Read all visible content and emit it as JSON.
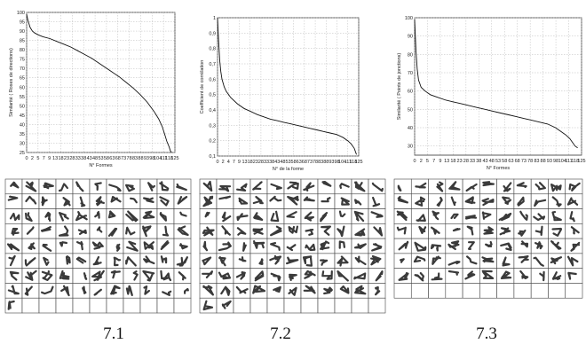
{
  "chart_data": [
    {
      "type": "line",
      "id": "7.1",
      "caption": "7.1",
      "xlabel": "N° Formes",
      "ylabel": "Similarité ( Roses de directions)",
      "ylim": [
        25,
        100
      ],
      "yticks": [
        "25",
        "30",
        "35",
        "40",
        "45",
        "50",
        "55",
        "60",
        "65",
        "70",
        "75",
        "80",
        "85",
        "90",
        "95",
        "100"
      ],
      "xticks": [
        "0",
        "2",
        "5",
        "7",
        "9",
        "13",
        "18",
        "23",
        "28",
        "33",
        "38",
        "43",
        "48",
        "53",
        "58",
        "63",
        "68",
        "73",
        "78",
        "83",
        "88",
        "93",
        "98",
        "104",
        "111",
        "118",
        "125"
      ],
      "xlim": [
        0,
        128
      ],
      "grid": true,
      "series": [
        {
          "x": [
            0,
            1,
            2,
            3,
            5,
            7,
            10,
            14,
            20,
            26,
            32,
            38,
            44,
            50,
            56,
            62,
            68,
            74,
            80,
            86,
            92,
            98,
            104,
            110,
            114,
            117,
            119,
            121,
            123,
            124,
            125
          ],
          "y": [
            99,
            96,
            94,
            92,
            90,
            89,
            88,
            87,
            86,
            84.5,
            83,
            81.5,
            79.5,
            77.5,
            75.5,
            73,
            70.5,
            68,
            65.5,
            62.5,
            59.5,
            56,
            52,
            47,
            43,
            39,
            35,
            31,
            28,
            26,
            25
          ]
        }
      ],
      "glyph_grid": {
        "rows": 9,
        "cols": 11,
        "filled": 89
      }
    },
    {
      "type": "line",
      "id": "7.2",
      "caption": "7.2",
      "xlabel": "N° de la forme",
      "ylabel": "Coefficient de corrélation",
      "ylim": [
        0.1,
        1.0
      ],
      "yticks": [
        "0,1",
        "0,2",
        "0,3",
        "0,4",
        "0,5",
        "0,6",
        "0,7",
        "0,8",
        "0,9",
        "1"
      ],
      "xticks": [
        "0",
        "2",
        "4",
        "7",
        "9",
        "13",
        "18",
        "23",
        "28",
        "33",
        "38",
        "43",
        "48",
        "53",
        "58",
        "63",
        "68",
        "73",
        "78",
        "83",
        "88",
        "93",
        "98",
        "104",
        "111",
        "118",
        "125"
      ],
      "xlim": [
        0,
        128
      ],
      "grid": true,
      "series": [
        {
          "x": [
            0,
            1,
            2,
            3,
            4,
            6,
            8,
            12,
            18,
            24,
            30,
            36,
            42,
            48,
            54,
            60,
            66,
            72,
            78,
            84,
            90,
            96,
            102,
            108,
            114,
            118,
            121,
            124,
            126
          ],
          "y": [
            1.0,
            0.85,
            0.72,
            0.65,
            0.6,
            0.55,
            0.52,
            0.48,
            0.44,
            0.41,
            0.39,
            0.37,
            0.355,
            0.34,
            0.33,
            0.32,
            0.31,
            0.3,
            0.29,
            0.28,
            0.27,
            0.26,
            0.25,
            0.24,
            0.22,
            0.2,
            0.18,
            0.15,
            0.11
          ]
        }
      ],
      "glyph_grid": {
        "rows": 9,
        "cols": 11,
        "filled": 90
      }
    },
    {
      "type": "line",
      "id": "7.3",
      "caption": "7.3",
      "xlabel": "N° Formes",
      "ylabel": "Similarité ( Points de jonctions)",
      "ylim": [
        25,
        100
      ],
      "yticks": [
        "30",
        "40",
        "50",
        "60",
        "70",
        "80",
        "90",
        "100"
      ],
      "xticks": [
        "0",
        "2",
        "5",
        "7",
        "9",
        "13",
        "18",
        "23",
        "28",
        "33",
        "38",
        "43",
        "48",
        "53",
        "58",
        "63",
        "68",
        "73",
        "78",
        "83",
        "88",
        "93",
        "98",
        "104",
        "111",
        "118",
        "125"
      ],
      "xlim": [
        0,
        128
      ],
      "grid": true,
      "series": [
        {
          "x": [
            0,
            1,
            2,
            3,
            5,
            8,
            12,
            18,
            24,
            30,
            36,
            42,
            48,
            54,
            60,
            66,
            72,
            78,
            84,
            90,
            96,
            102,
            108,
            112,
            116,
            119,
            121,
            123,
            125
          ],
          "y": [
            99,
            82,
            72,
            66,
            62,
            60,
            58,
            56.5,
            55,
            54,
            53,
            52,
            51,
            50,
            49,
            48,
            47,
            46,
            45,
            44,
            43,
            42,
            40,
            38,
            36,
            34,
            32,
            30,
            29
          ]
        }
      ],
      "glyph_grid": {
        "rows": 8,
        "cols": 11,
        "filled": 77
      }
    }
  ]
}
